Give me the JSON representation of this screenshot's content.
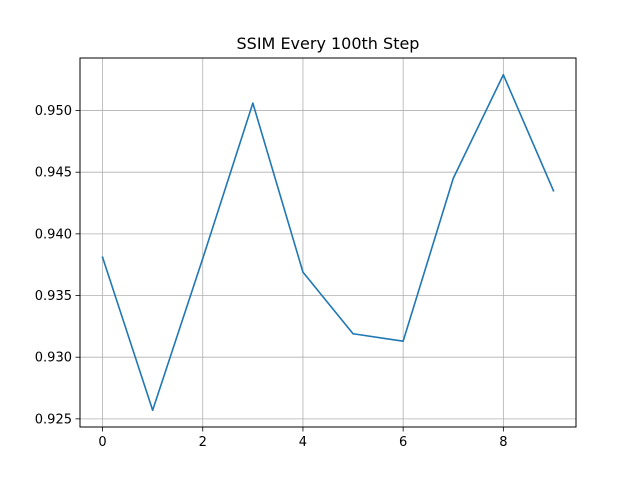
{
  "chart_data": {
    "type": "line",
    "title": "SSIM Every 100th Step",
    "xlabel": "",
    "ylabel": "",
    "x": [
      0,
      1,
      2,
      3,
      4,
      5,
      6,
      7,
      8,
      9
    ],
    "series": [
      {
        "values": [
          0.9381,
          0.9257,
          0.938,
          0.9506,
          0.9369,
          0.9319,
          0.9313,
          0.9445,
          0.9529,
          0.9435
        ],
        "color": "#1f77b4"
      }
    ],
    "xlim": [
      -0.45,
      9.45
    ],
    "ylim": [
      0.92434,
      0.95426
    ],
    "xticks": [
      0,
      2,
      4,
      6,
      8
    ],
    "xtick_labels": [
      "0",
      "2",
      "4",
      "6",
      "8"
    ],
    "yticks": [
      0.925,
      0.93,
      0.935,
      0.94,
      0.945,
      0.95
    ],
    "ytick_labels": [
      "0.925",
      "0.930",
      "0.935",
      "0.940",
      "0.945",
      "0.950"
    ],
    "grid": true,
    "legend": "none"
  }
}
